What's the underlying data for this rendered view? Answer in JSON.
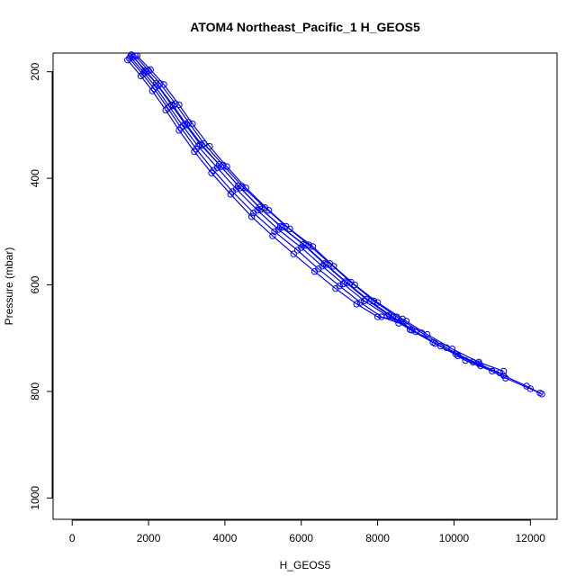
{
  "chart_data": {
    "type": "line",
    "title": "ATOM4 Northeast_Pacific_1 H_GEOS5",
    "xlabel": "H_GEOS5",
    "ylabel": "Pressure (mbar)",
    "xlim": [
      -500,
      12700
    ],
    "ylim": [
      1040,
      165
    ],
    "y_reversed": true,
    "grid": false,
    "xticks": [
      0,
      2000,
      4000,
      6000,
      8000,
      10000,
      12000
    ],
    "yticks": [
      200,
      400,
      600,
      800,
      1000
    ],
    "series_color": "#0000ff",
    "marker": "open-circle",
    "series": [
      {
        "values": [
          [
            1650,
            170
          ],
          [
            2000,
            198
          ],
          [
            2300,
            222
          ],
          [
            2700,
            260
          ],
          [
            3050,
            295
          ],
          [
            3450,
            335
          ],
          [
            3950,
            375
          ],
          [
            4450,
            415
          ],
          [
            5050,
            455
          ],
          [
            5600,
            490
          ],
          [
            6200,
            525
          ],
          [
            6750,
            560
          ],
          [
            7300,
            595
          ],
          [
            7900,
            630
          ],
          [
            8500,
            660
          ],
          [
            9150,
            690
          ],
          [
            9800,
            718
          ],
          [
            10500,
            745
          ],
          [
            11200,
            765
          ]
        ]
      },
      {
        "values": [
          [
            1700,
            170
          ],
          [
            2050,
            196
          ],
          [
            2400,
            224
          ],
          [
            2800,
            262
          ],
          [
            3150,
            298
          ],
          [
            3600,
            340
          ],
          [
            4050,
            378
          ],
          [
            4550,
            418
          ],
          [
            5150,
            460
          ],
          [
            5700,
            495
          ],
          [
            6300,
            528
          ],
          [
            6850,
            565
          ],
          [
            7400,
            600
          ],
          [
            8000,
            633
          ],
          [
            8650,
            664
          ],
          [
            9300,
            693
          ],
          [
            9950,
            720
          ],
          [
            10650,
            745
          ],
          [
            11300,
            762
          ]
        ]
      },
      {
        "values": [
          [
            1600,
            172
          ],
          [
            1950,
            200
          ],
          [
            2250,
            226
          ],
          [
            2650,
            264
          ],
          [
            3000,
            300
          ],
          [
            3400,
            338
          ],
          [
            3900,
            378
          ],
          [
            4400,
            418
          ],
          [
            4950,
            458
          ],
          [
            5500,
            492
          ],
          [
            6100,
            526
          ],
          [
            6650,
            562
          ],
          [
            7200,
            596
          ],
          [
            7800,
            631
          ],
          [
            8400,
            660
          ],
          [
            9000,
            688
          ],
          [
            9650,
            715
          ],
          [
            10300,
            742
          ],
          [
            11000,
            762
          ]
        ]
      },
      {
        "values": [
          [
            1550,
            168
          ],
          [
            1900,
            198
          ],
          [
            2200,
            222
          ],
          [
            2600,
            262
          ],
          [
            2950,
            298
          ],
          [
            3350,
            336
          ],
          [
            3850,
            374
          ],
          [
            4350,
            414
          ],
          [
            4900,
            454
          ],
          [
            5450,
            490
          ],
          [
            6050,
            524
          ],
          [
            6600,
            560
          ],
          [
            7150,
            594
          ],
          [
            7700,
            627
          ],
          [
            8300,
            657
          ],
          [
            8900,
            685
          ],
          [
            9500,
            710
          ],
          [
            10100,
            733
          ],
          [
            10700,
            752
          ],
          [
            11350,
            775
          ],
          [
            12000,
            795
          ],
          [
            12300,
            805
          ]
        ]
      },
      {
        "values": [
          [
            1500,
            175
          ],
          [
            1850,
            205
          ],
          [
            2150,
            232
          ],
          [
            2500,
            268
          ],
          [
            2850,
            305
          ],
          [
            3250,
            345
          ],
          [
            3700,
            385
          ],
          [
            4200,
            425
          ],
          [
            4750,
            465
          ],
          [
            5300,
            500
          ],
          [
            5900,
            535
          ],
          [
            6450,
            570
          ],
          [
            7000,
            602
          ],
          [
            7550,
            633
          ],
          [
            8100,
            660
          ],
          [
            8550,
            672
          ]
        ]
      },
      {
        "values": [
          [
            1450,
            178
          ],
          [
            1800,
            208
          ],
          [
            2100,
            236
          ],
          [
            2450,
            272
          ],
          [
            2800,
            310
          ],
          [
            3200,
            350
          ],
          [
            3650,
            390
          ],
          [
            4150,
            430
          ],
          [
            4700,
            472
          ],
          [
            5250,
            508
          ],
          [
            5800,
            542
          ],
          [
            6350,
            575
          ],
          [
            6900,
            607
          ],
          [
            7450,
            636
          ],
          [
            8000,
            660
          ],
          [
            8750,
            668
          ]
        ]
      },
      {
        "values": [
          [
            1520,
            172
          ],
          [
            1880,
            202
          ],
          [
            2180,
            228
          ],
          [
            2550,
            266
          ],
          [
            2900,
            302
          ],
          [
            3300,
            340
          ],
          [
            3800,
            380
          ],
          [
            4300,
            420
          ],
          [
            4850,
            460
          ],
          [
            5400,
            496
          ],
          [
            6000,
            530
          ],
          [
            6550,
            565
          ],
          [
            7100,
            598
          ],
          [
            7650,
            630
          ],
          [
            8250,
            658
          ],
          [
            8850,
            684
          ],
          [
            9450,
            708
          ],
          [
            10050,
            730
          ],
          [
            10650,
            748
          ],
          [
            11300,
            770
          ],
          [
            11900,
            790
          ],
          [
            12250,
            803
          ]
        ]
      }
    ]
  }
}
